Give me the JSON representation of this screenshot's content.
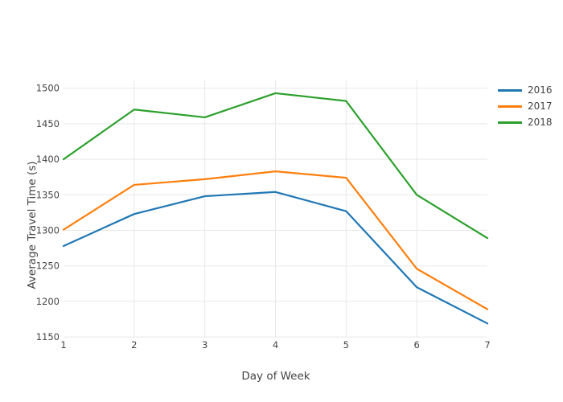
{
  "chart_data": {
    "type": "line",
    "title": "",
    "xlabel": "Day of Week",
    "ylabel": "Average Travel Time (s)",
    "x": [
      1,
      2,
      3,
      4,
      5,
      6,
      7
    ],
    "x_ticks": [
      "1",
      "2",
      "3",
      "4",
      "5",
      "6",
      "7"
    ],
    "y_ticks": [
      1150,
      1200,
      1250,
      1300,
      1350,
      1400,
      1450,
      1500
    ],
    "xlim": [
      1,
      7
    ],
    "ylim": [
      1149,
      1511
    ],
    "grid": true,
    "legend_position": "right-outside",
    "series": [
      {
        "name": "2016",
        "color": "#1f77b4",
        "values": [
          1278,
          1323,
          1348,
          1354,
          1327,
          1220,
          1169
        ]
      },
      {
        "name": "2017",
        "color": "#ff7f0e",
        "values": [
          1301,
          1364,
          1372,
          1383,
          1374,
          1246,
          1189
        ]
      },
      {
        "name": "2018",
        "color": "#2ca02c",
        "values": [
          1400,
          1470,
          1459,
          1493,
          1482,
          1350,
          1289
        ]
      }
    ]
  },
  "colors": {
    "background": "#ffffff",
    "gridline": "#e8e8e8",
    "text": "#444444"
  }
}
